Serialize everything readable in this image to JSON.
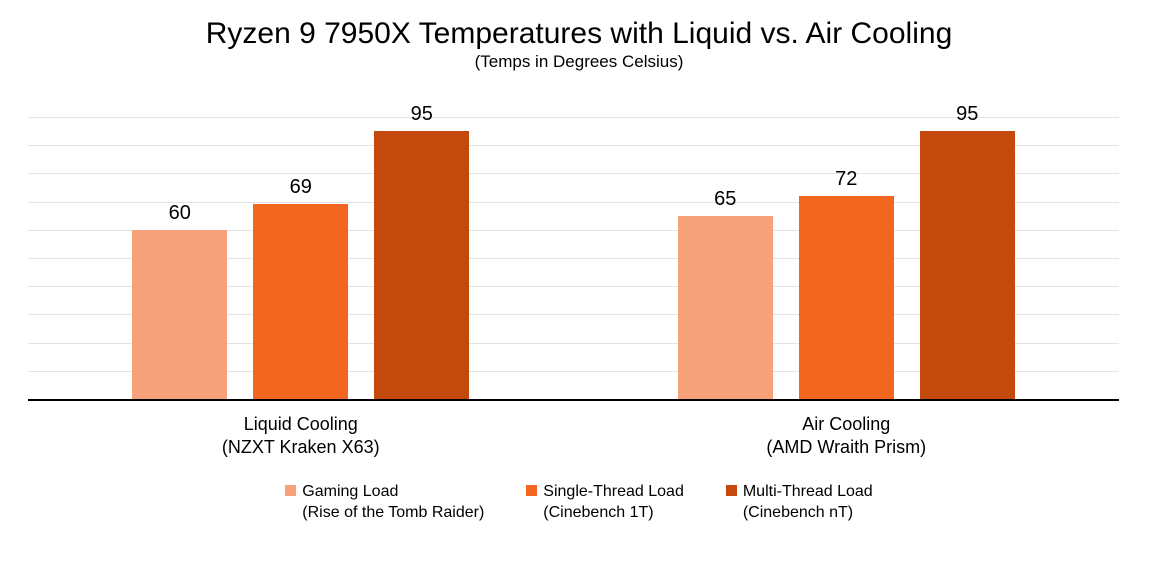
{
  "chart_data": {
    "type": "bar",
    "title": "Ryzen 9 7950X Temperatures with Liquid vs. Air Cooling",
    "subtitle": "(Temps in Degrees Celsius)",
    "xlabel": "",
    "ylabel": "",
    "ylim": [
      0,
      100
    ],
    "gridline_step": 10,
    "grid": true,
    "y_axis_tick_labels_visible": false,
    "value_labels_visible": true,
    "legend_position": "bottom",
    "categories": [
      {
        "label": "Liquid Cooling",
        "sublabel": "(NZXT Kraken X63)"
      },
      {
        "label": "Air Cooling",
        "sublabel": "(AMD Wraith Prism)"
      }
    ],
    "series": [
      {
        "name": "Gaming Load",
        "subname": "(Rise of the Tomb Raider)",
        "color": "#F6A17A",
        "values": [
          60,
          65
        ]
      },
      {
        "name": "Single-Thread Load",
        "subname": "(Cinebench 1T)",
        "color": "#F3661F",
        "values": [
          69,
          72
        ]
      },
      {
        "name": "Multi-Thread Load",
        "subname": "(Cinebench nT)",
        "color": "#C4490C",
        "values": [
          95,
          95
        ]
      }
    ],
    "colors": {
      "gridline": "#E3E3E3",
      "axis_line": "#000000",
      "text": "#000000",
      "background": "#FFFFFF"
    }
  }
}
